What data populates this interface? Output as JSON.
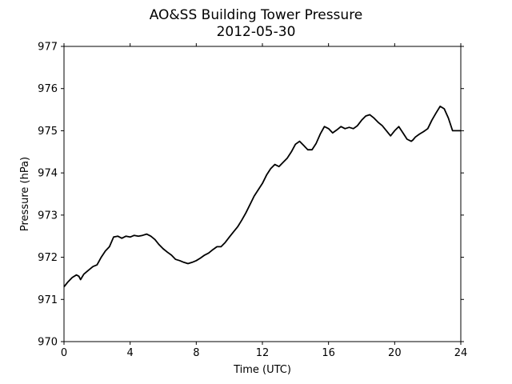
{
  "chart_data": {
    "type": "line",
    "title": "AO&SS Building Tower Pressure",
    "subtitle": "2012-05-30",
    "xlabel": "Time (UTC)",
    "ylabel": "Pressure (hPa)",
    "xlim": [
      0,
      24
    ],
    "ylim": [
      970,
      977
    ],
    "xticks": [
      0,
      4,
      8,
      12,
      16,
      20,
      24
    ],
    "yticks": [
      970,
      971,
      972,
      973,
      974,
      975,
      976,
      977
    ],
    "grid": false,
    "legend": "none",
    "series": [
      {
        "color": "#000000",
        "x": [
          0,
          0.25,
          0.5,
          0.75,
          0.9,
          1.0,
          1.2,
          1.5,
          1.75,
          2.0,
          2.25,
          2.5,
          2.75,
          3.0,
          3.25,
          3.5,
          3.75,
          4.0,
          4.25,
          4.5,
          4.75,
          5.0,
          5.25,
          5.5,
          5.75,
          6.0,
          6.25,
          6.5,
          6.75,
          7.0,
          7.25,
          7.5,
          7.75,
          8.0,
          8.25,
          8.5,
          8.75,
          9.0,
          9.25,
          9.5,
          9.75,
          10.0,
          10.25,
          10.5,
          10.75,
          11.0,
          11.25,
          11.5,
          11.75,
          12.0,
          12.25,
          12.5,
          12.75,
          13.0,
          13.25,
          13.5,
          13.75,
          14.0,
          14.25,
          14.5,
          14.75,
          15.0,
          15.25,
          15.5,
          15.75,
          16.0,
          16.25,
          16.5,
          16.75,
          17.0,
          17.25,
          17.5,
          17.75,
          18.0,
          18.25,
          18.5,
          18.75,
          19.0,
          19.25,
          19.5,
          19.75,
          20.0,
          20.25,
          20.5,
          20.75,
          21.0,
          21.1,
          21.25,
          21.5,
          21.75,
          22.0,
          22.25,
          22.5,
          22.75,
          23.0,
          23.25,
          23.5,
          23.75,
          24.0
        ],
        "y": [
          971.3,
          971.42,
          971.52,
          971.58,
          971.55,
          971.47,
          971.6,
          971.7,
          971.78,
          971.82,
          972.0,
          972.15,
          972.25,
          972.48,
          972.5,
          972.45,
          972.5,
          972.48,
          972.52,
          972.5,
          972.52,
          972.55,
          972.5,
          972.42,
          972.3,
          972.2,
          972.12,
          972.05,
          971.95,
          971.92,
          971.88,
          971.85,
          971.88,
          971.92,
          971.98,
          972.05,
          972.1,
          972.18,
          972.25,
          972.25,
          972.35,
          972.48,
          972.6,
          972.72,
          972.88,
          973.05,
          973.25,
          973.45,
          973.6,
          973.75,
          973.95,
          974.1,
          974.2,
          974.15,
          974.25,
          974.35,
          974.5,
          974.68,
          974.75,
          974.65,
          974.55,
          974.55,
          974.7,
          974.92,
          975.1,
          975.05,
          974.95,
          975.02,
          975.1,
          975.05,
          975.08,
          975.05,
          975.12,
          975.25,
          975.35,
          975.38,
          975.3,
          975.2,
          975.12,
          975.0,
          974.88,
          975.0,
          975.1,
          974.95,
          974.8,
          974.75,
          974.78,
          974.85,
          974.92,
          974.98,
          975.05,
          975.25,
          975.42,
          975.58,
          975.52,
          975.3,
          975.0,
          975.0,
          975.0
        ]
      }
    ]
  }
}
